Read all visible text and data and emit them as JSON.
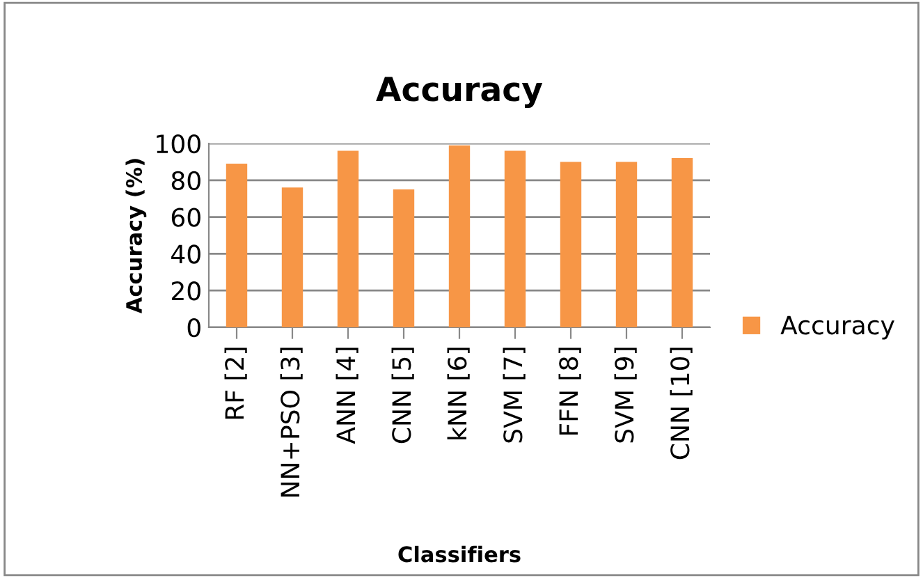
{
  "chart_data": {
    "type": "bar",
    "title": "Accuracy",
    "xlabel": "Classifiers",
    "ylabel": "Accuracy (%)",
    "categories": [
      "RF [2]",
      "NN+PSO [3]",
      "ANN [4]",
      "CNN [5]",
      "kNN [6]",
      "SVM [7]",
      "FFN [8]",
      "SVM [9]",
      "CNN [10]"
    ],
    "series": [
      {
        "name": "Accuracy",
        "color": "#f79646",
        "values": [
          89,
          76,
          96,
          75,
          99,
          96,
          90,
          90,
          92
        ]
      }
    ],
    "ylim": [
      0,
      100
    ],
    "yticks": [
      0,
      20,
      40,
      60,
      80,
      100
    ],
    "grid": "y",
    "legend": "right"
  }
}
